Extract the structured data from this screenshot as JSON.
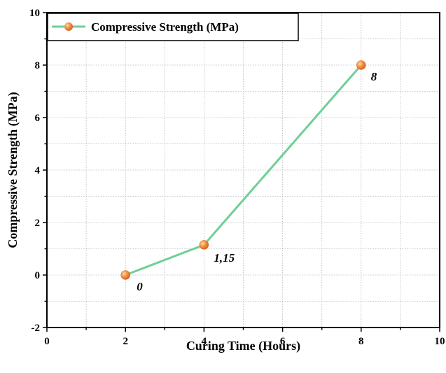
{
  "chart_data": {
    "type": "line",
    "xlabel": "Curing Time (Hours)",
    "ylabel": "Compressive Strength (MPa)",
    "xlim": [
      0,
      10
    ],
    "ylim": [
      -2,
      10
    ],
    "x_ticks": [
      "0",
      "2",
      "4",
      "6",
      "8",
      "10"
    ],
    "y_ticks": [
      "-2",
      "0",
      "2",
      "4",
      "6",
      "8",
      "10"
    ],
    "grid": true,
    "legend_position": "top-left",
    "series": [
      {
        "name": "Compressive Strength (MPa)",
        "color": "#6fcf97",
        "marker_color": "#f28a3c",
        "x": [
          2,
          4,
          8
        ],
        "y": [
          0,
          1.15,
          8
        ],
        "labels": [
          "0",
          "1,15",
          "8"
        ]
      }
    ]
  }
}
